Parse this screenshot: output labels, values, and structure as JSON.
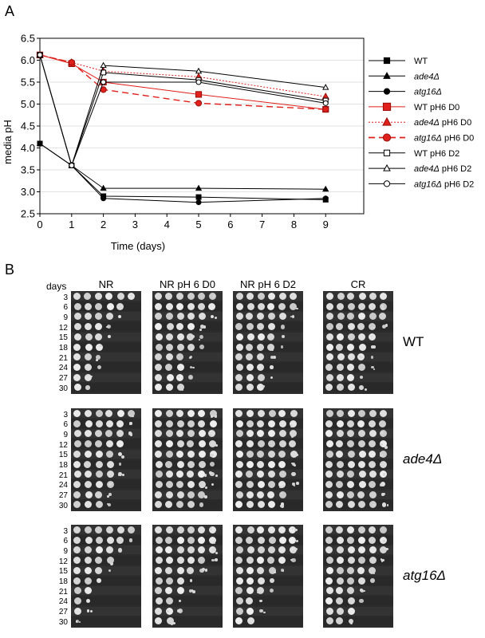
{
  "panel_a_label": "A",
  "panel_b_label": "B",
  "chart_data": {
    "type": "line",
    "xlabel": "Time (days)",
    "ylabel": "media pH",
    "x": [
      0,
      1,
      2,
      5,
      9
    ],
    "x_ticks": [
      0,
      1,
      2,
      3,
      4,
      5,
      6,
      7,
      8,
      9
    ],
    "y_ticks": [
      2.5,
      3.0,
      3.5,
      4.0,
      4.5,
      5.0,
      5.5,
      6.0,
      6.5
    ],
    "xlim": [
      0,
      10.2
    ],
    "ylim": [
      2.5,
      6.5
    ],
    "grid": "horizontal",
    "legend_placement": "right",
    "series": [
      {
        "name": "WT",
        "values": [
          4.1,
          3.6,
          2.9,
          2.88,
          2.82
        ],
        "color": "#000000",
        "marker": "square-filled",
        "line": "solid"
      },
      {
        "name": "ade4Δ",
        "values": [
          4.1,
          3.6,
          3.08,
          3.08,
          3.06
        ],
        "color": "#000000",
        "marker": "triangle-filled",
        "line": "solid"
      },
      {
        "name": "atg16Δ",
        "values": [
          4.1,
          3.6,
          2.85,
          2.76,
          2.85
        ],
        "color": "#000000",
        "marker": "circle-filled",
        "line": "solid"
      },
      {
        "name": "WT pH6 D0",
        "values": [
          6.12,
          5.92,
          5.5,
          5.22,
          4.88
        ],
        "color": "#e0201b",
        "marker": "square-filled",
        "line": "solid"
      },
      {
        "name": "ade4Δ pH6 D0",
        "values": [
          6.12,
          5.95,
          5.75,
          5.62,
          5.17
        ],
        "color": "#e0201b",
        "marker": "triangle-filled",
        "line": "dotted"
      },
      {
        "name": "atg16Δ pH6 D0",
        "values": [
          6.12,
          5.95,
          5.33,
          5.02,
          4.88
        ],
        "color": "#e0201b",
        "marker": "circle-filled",
        "line": "dashed"
      },
      {
        "name": "WT pH6 D2",
        "values": [
          6.12,
          3.6,
          5.72,
          5.55,
          5.08
        ],
        "color": "#000000",
        "marker": "square-open",
        "line": "solid"
      },
      {
        "name": "ade4Δ pH6 D2",
        "values": [
          6.12,
          3.6,
          5.88,
          5.75,
          5.38
        ],
        "color": "#000000",
        "marker": "triangle-open",
        "line": "solid"
      },
      {
        "name": "atg16Δ pH6 D2",
        "values": [
          6.12,
          3.6,
          5.5,
          5.5,
          5.02
        ],
        "color": "#000000",
        "marker": "circle-open",
        "line": "solid"
      }
    ]
  },
  "legend": [
    {
      "name": "WT",
      "italic": "",
      "rest": "WT"
    },
    {
      "name": "ade4Δ",
      "italic": "ade4Δ",
      "rest": ""
    },
    {
      "name": "atg16Δ",
      "italic": "atg16Δ",
      "rest": ""
    },
    {
      "name": "WT pH6 D0",
      "italic": "",
      "rest": "WT pH6 D0"
    },
    {
      "name": "ade4Δ pH6 D0",
      "italic": "ade4Δ",
      "rest": " pH6 D0"
    },
    {
      "name": "atg16Δ pH6 D0",
      "italic": "atg16Δ",
      "rest": " pH6 D0"
    },
    {
      "name": "WT pH6 D2",
      "italic": "",
      "rest": "WT pH6 D2"
    },
    {
      "name": "ade4Δ pH6 D2",
      "italic": "ade4Δ",
      "rest": "  pH6 D2"
    },
    {
      "name": "atg16Δ pH6 D2",
      "italic": "atg16Δ",
      "rest": "  pH6 D2"
    }
  ],
  "spot_assay": {
    "days_label": "days",
    "columns": [
      "NR",
      "NR pH 6 D0",
      "NR pH 6 D2",
      "CR"
    ],
    "days": [
      "3",
      "6",
      "9",
      "12",
      "15",
      "18",
      "21",
      "24",
      "27",
      "30"
    ],
    "strains": [
      "WT",
      "ade4Δ",
      "atg16Δ"
    ]
  }
}
